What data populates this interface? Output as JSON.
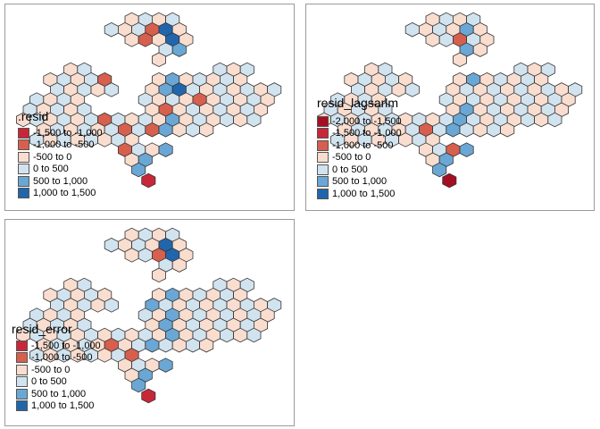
{
  "colors": {
    "-2000_-1500": "#a50f23",
    "-1500_-1000": "#c8273a",
    "-1000_-500": "#d6604d",
    "-500_0": "#f9ddcf",
    "0_500": "#d1e3ef",
    "500_1000": "#6aa7d4",
    "1000_1500": "#2166ac",
    "border": "#333333"
  },
  "chart_data": [
    {
      "type": "heatmap",
      "title": ".resid",
      "legend": {
        "placement": "bottom-left",
        "classes": [
          {
            "label": "-1,500 to -1,000",
            "color": "#c8273a"
          },
          {
            "label": "-1,000 to -500",
            "color": "#d6604d"
          },
          {
            "label": "-500 to 0",
            "color": "#f9ddcf"
          },
          {
            "label": "0 to 500",
            "color": "#d1e3ef"
          },
          {
            "label": "500 to 1,000",
            "color": "#6aa7d4"
          },
          {
            "label": "1,000 to 1,500",
            "color": "#2166ac"
          }
        ]
      },
      "highlights": {
        "2,24": "c",
        "14,6": "c",
        "10,6": "d",
        "11,7": "d",
        "16,9": "d",
        "3,6": "d",
        "4,7": "d",
        "3,8": "d",
        "2,9": "d",
        "17,8": "d",
        "6,6": "d",
        "13,7": "d",
        "5,10": "d",
        "4,11": "d",
        "9,10": "d",
        "11,9": "d",
        "1,9": "d",
        "8,13": "d",
        "14,9": "f",
        "12,9": "f",
        "9,8": "f",
        "13,10": "f",
        "12,11": "f",
        "11,10": "f",
        "10,11": "f",
        "15,8": "f",
        "16,7": "f",
        "18,7": "f",
        "7,10": "f",
        "3,11": "f",
        "5,12": "f",
        "6,11": "f",
        "1,10": "g",
        "7,11": "g",
        "2,11": "g"
      }
    },
    {
      "type": "heatmap",
      "title": "resid_lagsarlm",
      "legend": {
        "placement": "bottom-left",
        "classes": [
          {
            "label": "-2,000 to -1,500",
            "color": "#a50f23"
          },
          {
            "label": "-1,500 to -1,000",
            "color": "#c8273a"
          },
          {
            "label": "-1,000 to -500",
            "color": "#d6604d"
          },
          {
            "label": "-500 to 0",
            "color": "#f9ddcf"
          },
          {
            "label": "0 to 500",
            "color": "#d1e3ef"
          },
          {
            "label": "500 to 1,000",
            "color": "#6aa7d4"
          },
          {
            "label": "1,000 to 1,500",
            "color": "#2166ac"
          }
        ]
      },
      "highlights": {
        "2,24": "b",
        "14,7": "d",
        "11,7": "d",
        "3,7": "d",
        "13,9": "d",
        "2,10": "d",
        "14,9": "f",
        "12,9": "f",
        "10,10": "f",
        "13,10": "f",
        "15,8": "f",
        "11,9": "f",
        "9,10": "f",
        "6,11": "f",
        "4,11": "f",
        "3,10": "f",
        "1,10": "f",
        "12,11": "f",
        "17,8": "f"
      }
    },
    {
      "type": "heatmap",
      "title": "resid_error",
      "legend": {
        "placement": "bottom-left",
        "classes": [
          {
            "label": "-1,500 to -1,000",
            "color": "#c8273a"
          },
          {
            "label": "-1,000 to -500",
            "color": "#d6604d"
          },
          {
            "label": "-500 to 0",
            "color": "#f9ddcf"
          },
          {
            "label": "0 to 500",
            "color": "#d1e3ef"
          },
          {
            "label": "500 to 1,000",
            "color": "#6aa7d4"
          },
          {
            "label": "1,000 to 1,500",
            "color": "#2166ac"
          }
        ]
      },
      "highlights": {
        "2,24": "c",
        "3,6": "d",
        "5,7": "d",
        "11,6": "d",
        "14,6": "d",
        "17,8": "d",
        "12,8": "d",
        "2,10": "d",
        "14,9": "f",
        "12,9": "f",
        "9,10": "f",
        "13,10": "f",
        "12,11": "f",
        "11,9": "f",
        "15,8": "f",
        "10,11": "f",
        "6,11": "f",
        "4,11": "f",
        "1,10": "g",
        "2,11": "g",
        "8,11": "f",
        "7,9": "f"
      }
    }
  ]
}
